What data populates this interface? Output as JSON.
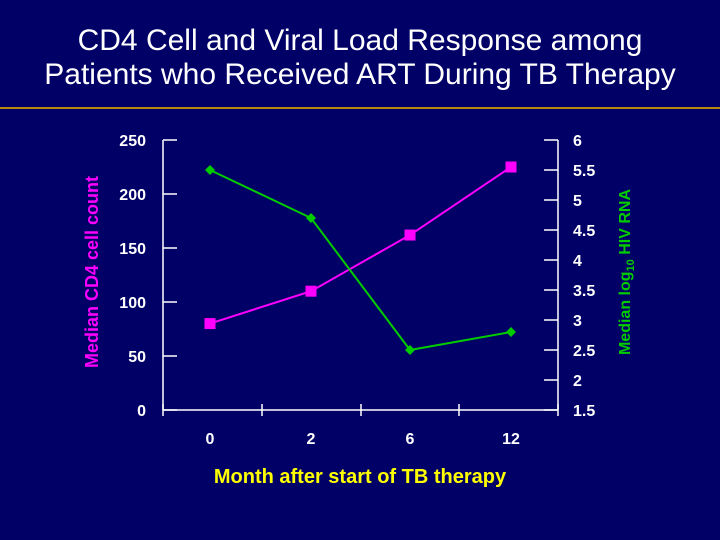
{
  "chart_data": {
    "type": "line",
    "title_lines": [
      "CD4 Cell and Viral Load Response among",
      "Patients who Received ART During TB Therapy"
    ],
    "categories": [
      "0",
      "2",
      "6",
      "12"
    ],
    "xlabel": "Month after start of TB therapy",
    "ylabel_left": "Median CD4 cell count",
    "ylabel_right": {
      "prefix": "Median log",
      "subscript": "10",
      "suffix": " HIV RNA"
    },
    "ylim_left": [
      0,
      250
    ],
    "yticks_left": [
      0,
      50,
      100,
      150,
      200,
      250
    ],
    "ylim_right": [
      1.5,
      6
    ],
    "yticks_right": [
      1.5,
      2,
      2.5,
      3,
      3.5,
      4,
      4.5,
      5,
      5.5,
      6
    ],
    "series": [
      {
        "axis": "left",
        "color": "#ff00ff",
        "marker": "square",
        "values": [
          80,
          110,
          162,
          225
        ]
      },
      {
        "axis": "right",
        "color": "#00cc00",
        "marker": "diamond",
        "values": [
          5.5,
          4.7,
          2.5,
          2.8
        ]
      }
    ],
    "grid": false
  }
}
